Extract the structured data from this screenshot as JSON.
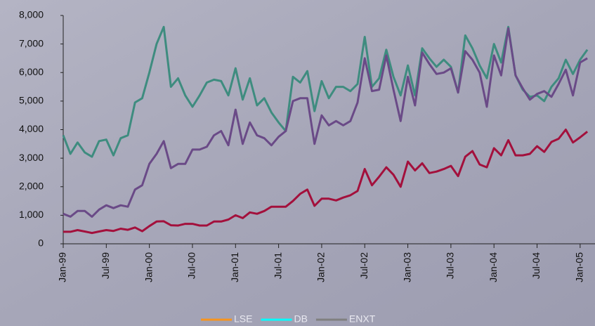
{
  "chart_data": {
    "type": "line",
    "categories": [
      "Jan-99",
      null,
      null,
      null,
      null,
      null,
      "Jul-99",
      null,
      null,
      null,
      null,
      null,
      "Jan-00",
      null,
      null,
      null,
      null,
      null,
      "Jul-00",
      null,
      null,
      null,
      null,
      null,
      "Jan-01",
      null,
      null,
      null,
      null,
      null,
      "Jul-01",
      null,
      null,
      null,
      null,
      null,
      "Jan-02",
      null,
      null,
      null,
      null,
      null,
      "Jul-02",
      null,
      null,
      null,
      null,
      null,
      "Jan-03",
      null,
      null,
      null,
      null,
      null,
      "Jul-03",
      null,
      null,
      null,
      null,
      null,
      "Jan-04",
      null,
      null,
      null,
      null,
      null,
      "Jul-04",
      null,
      null,
      null,
      null,
      null,
      "Jan-05",
      null
    ],
    "series": [
      {
        "name": "LSE",
        "color": "#a3103c",
        "legend_color": "#f7941d",
        "values": [
          420,
          420,
          480,
          430,
          380,
          430,
          480,
          450,
          530,
          490,
          570,
          440,
          620,
          780,
          790,
          650,
          640,
          700,
          700,
          640,
          640,
          780,
          780,
          850,
          1000,
          900,
          1100,
          1050,
          1150,
          1300,
          1300,
          1300,
          1500,
          1750,
          1900,
          1330,
          1580,
          1580,
          1520,
          1620,
          1700,
          1850,
          2620,
          2050,
          2350,
          2680,
          2420,
          2000,
          2880,
          2570,
          2820,
          2480,
          2530,
          2620,
          2730,
          2370,
          3050,
          3250,
          2780,
          2680,
          3350,
          3100,
          3630,
          3100,
          3100,
          3150,
          3420,
          3220,
          3570,
          3680,
          4000,
          3550,
          3730,
          3930
        ]
      },
      {
        "name": "DB",
        "color": "#3e8c7f",
        "legend_color": "#00ffff",
        "values": [
          3800,
          3150,
          3550,
          3200,
          3050,
          3600,
          3650,
          3100,
          3700,
          3800,
          4950,
          5100,
          6000,
          7000,
          7600,
          5500,
          5800,
          5200,
          4800,
          5200,
          5650,
          5750,
          5700,
          5200,
          6150,
          5050,
          5800,
          4850,
          5100,
          4600,
          4250,
          3950,
          5850,
          5650,
          6050,
          4650,
          5700,
          5100,
          5500,
          5500,
          5350,
          5600,
          7250,
          5500,
          5800,
          6800,
          5850,
          5200,
          6250,
          5200,
          6850,
          6500,
          6200,
          6450,
          6200,
          5300,
          7300,
          6850,
          6250,
          5800,
          7000,
          6350,
          7600,
          5900,
          5400,
          5150,
          5200,
          5000,
          5500,
          5800,
          6450,
          5950,
          6450,
          6800
        ]
      },
      {
        "name": "ENXT",
        "color": "#6a4a87",
        "legend_color": "#808080",
        "values": [
          1050,
          950,
          1150,
          1150,
          950,
          1200,
          1350,
          1250,
          1350,
          1300,
          1900,
          2050,
          2800,
          3150,
          3600,
          2650,
          2800,
          2800,
          3300,
          3300,
          3400,
          3800,
          3950,
          3450,
          4700,
          3500,
          4250,
          3800,
          3700,
          3450,
          3750,
          3950,
          5000,
          5100,
          5100,
          3500,
          4500,
          4150,
          4300,
          4150,
          4300,
          4950,
          6500,
          5350,
          5400,
          6600,
          5400,
          4300,
          5850,
          4850,
          6700,
          6300,
          5950,
          6000,
          6150,
          5300,
          6750,
          6450,
          6000,
          4800,
          6600,
          5900,
          7550,
          5900,
          5450,
          5050,
          5250,
          5350,
          5150,
          5600,
          6100,
          5200,
          6350,
          6500
        ]
      }
    ],
    "ylim": [
      0,
      8000
    ],
    "yticks": [
      0,
      {
        "value": 1000,
        "label": "1,000"
      },
      {
        "value": 2000,
        "label": "2,000"
      },
      {
        "value": 3000,
        "label": "3,000"
      },
      {
        "value": 4000,
        "label": "4,000"
      },
      {
        "value": 5000,
        "label": "5,000"
      },
      {
        "value": 6000,
        "label": "6,000"
      },
      {
        "value": 7000,
        "label": "7,000"
      },
      {
        "value": 8000,
        "label": "8,000"
      }
    ],
    "grid": false
  }
}
